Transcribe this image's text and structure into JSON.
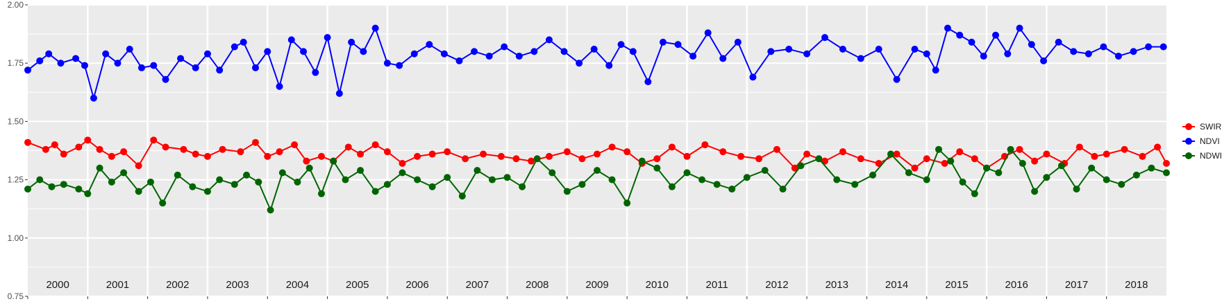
{
  "colors": {
    "panel_bg": "#ebebeb",
    "grid": "#ffffff",
    "swir": "#ff0000",
    "ndvi": "#0000ff",
    "ndwi": "#006400"
  },
  "chart_data": {
    "type": "line",
    "title": "",
    "xlabel": "",
    "ylabel": "",
    "ylim": [
      0.75,
      2.0
    ],
    "xlim": [
      2000.0,
      2019.0
    ],
    "yticks": [
      "0.75",
      "1.00",
      "1.25",
      "1.50",
      "1.75",
      "2.00"
    ],
    "grid": true,
    "legend_position": "right",
    "year_labels": [
      "2000",
      "2001",
      "2002",
      "2003",
      "2004",
      "2005",
      "2006",
      "2007",
      "2008",
      "2009",
      "2010",
      "2011",
      "2012",
      "2013",
      "2014",
      "2015",
      "2016",
      "2017",
      "2018"
    ],
    "series": [
      {
        "name": "SWIR",
        "color": "#ff0000",
        "x": [
          2000.0,
          2000.3,
          2000.45,
          2000.6,
          2000.85,
          2001.0,
          2001.2,
          2001.4,
          2001.6,
          2001.85,
          2002.1,
          2002.3,
          2002.6,
          2002.8,
          2003.0,
          2003.25,
          2003.55,
          2003.8,
          2004.0,
          2004.2,
          2004.45,
          2004.65,
          2004.9,
          2005.1,
          2005.35,
          2005.55,
          2005.8,
          2006.0,
          2006.25,
          2006.5,
          2006.75,
          2007.0,
          2007.3,
          2007.6,
          2007.9,
          2008.15,
          2008.4,
          2008.7,
          2009.0,
          2009.25,
          2009.5,
          2009.75,
          2010.0,
          2010.25,
          2010.5,
          2010.75,
          2011.0,
          2011.3,
          2011.6,
          2011.9,
          2012.2,
          2012.5,
          2012.8,
          2013.0,
          2013.3,
          2013.6,
          2013.9,
          2014.2,
          2014.5,
          2014.8,
          2015.0,
          2015.3,
          2015.55,
          2015.8,
          2016.0,
          2016.3,
          2016.55,
          2016.8,
          2017.0,
          2017.3,
          2017.55,
          2017.8,
          2018.0,
          2018.3,
          2018.6,
          2018.85,
          2019.0
        ],
        "values": [
          1.41,
          1.38,
          1.4,
          1.36,
          1.39,
          1.42,
          1.38,
          1.35,
          1.37,
          1.31,
          1.42,
          1.39,
          1.38,
          1.36,
          1.35,
          1.38,
          1.37,
          1.41,
          1.35,
          1.37,
          1.4,
          1.33,
          1.35,
          1.33,
          1.39,
          1.36,
          1.4,
          1.37,
          1.32,
          1.35,
          1.36,
          1.37,
          1.34,
          1.36,
          1.35,
          1.34,
          1.33,
          1.35,
          1.37,
          1.34,
          1.36,
          1.39,
          1.37,
          1.32,
          1.34,
          1.39,
          1.35,
          1.4,
          1.37,
          1.35,
          1.34,
          1.38,
          1.3,
          1.36,
          1.33,
          1.37,
          1.34,
          1.32,
          1.36,
          1.3,
          1.34,
          1.32,
          1.37,
          1.34,
          1.3,
          1.35,
          1.38,
          1.33,
          1.36,
          1.32,
          1.39,
          1.35,
          1.36,
          1.38,
          1.35,
          1.39,
          1.32
        ]
      },
      {
        "name": "NDVI",
        "color": "#0000ff",
        "x": [
          2000.0,
          2000.2,
          2000.35,
          2000.55,
          2000.8,
          2000.95,
          2001.1,
          2001.3,
          2001.5,
          2001.7,
          2001.9,
          2002.1,
          2002.3,
          2002.55,
          2002.8,
          2003.0,
          2003.2,
          2003.45,
          2003.6,
          2003.8,
          2004.0,
          2004.2,
          2004.4,
          2004.6,
          2004.8,
          2005.0,
          2005.2,
          2005.4,
          2005.6,
          2005.8,
          2006.0,
          2006.2,
          2006.45,
          2006.7,
          2006.95,
          2007.2,
          2007.45,
          2007.7,
          2007.95,
          2008.2,
          2008.45,
          2008.7,
          2008.95,
          2009.2,
          2009.45,
          2009.7,
          2009.9,
          2010.1,
          2010.35,
          2010.6,
          2010.85,
          2011.1,
          2011.35,
          2011.6,
          2011.85,
          2012.1,
          2012.4,
          2012.7,
          2013.0,
          2013.3,
          2013.6,
          2013.9,
          2014.2,
          2014.5,
          2014.8,
          2015.0,
          2015.15,
          2015.35,
          2015.55,
          2015.75,
          2015.95,
          2016.15,
          2016.35,
          2016.55,
          2016.75,
          2016.95,
          2017.2,
          2017.45,
          2017.7,
          2017.95,
          2018.2,
          2018.45,
          2018.7,
          2018.95
        ],
        "values": [
          1.72,
          1.76,
          1.79,
          1.75,
          1.77,
          1.74,
          1.6,
          1.79,
          1.75,
          1.81,
          1.73,
          1.74,
          1.68,
          1.77,
          1.73,
          1.79,
          1.72,
          1.82,
          1.84,
          1.73,
          1.8,
          1.65,
          1.85,
          1.8,
          1.71,
          1.86,
          1.62,
          1.84,
          1.8,
          1.9,
          1.75,
          1.74,
          1.79,
          1.83,
          1.79,
          1.76,
          1.8,
          1.78,
          1.82,
          1.78,
          1.8,
          1.85,
          1.8,
          1.75,
          1.81,
          1.74,
          1.83,
          1.8,
          1.67,
          1.84,
          1.83,
          1.78,
          1.88,
          1.77,
          1.84,
          1.69,
          1.8,
          1.81,
          1.79,
          1.86,
          1.81,
          1.77,
          1.81,
          1.68,
          1.81,
          1.79,
          1.72,
          1.9,
          1.87,
          1.84,
          1.78,
          1.87,
          1.79,
          1.9,
          1.83,
          1.76,
          1.84,
          1.8,
          1.79,
          1.82,
          1.78,
          1.8,
          1.82,
          1.82
        ]
      },
      {
        "name": "NDWI",
        "color": "#006400",
        "x": [
          2000.0,
          2000.2,
          2000.4,
          2000.6,
          2000.85,
          2001.0,
          2001.2,
          2001.4,
          2001.6,
          2001.85,
          2002.05,
          2002.25,
          2002.5,
          2002.75,
          2003.0,
          2003.2,
          2003.45,
          2003.65,
          2003.85,
          2004.05,
          2004.25,
          2004.5,
          2004.7,
          2004.9,
          2005.1,
          2005.3,
          2005.55,
          2005.8,
          2006.0,
          2006.25,
          2006.5,
          2006.75,
          2007.0,
          2007.25,
          2007.5,
          2007.75,
          2008.0,
          2008.25,
          2008.5,
          2008.75,
          2009.0,
          2009.25,
          2009.5,
          2009.75,
          2010.0,
          2010.25,
          2010.5,
          2010.75,
          2011.0,
          2011.25,
          2011.5,
          2011.75,
          2012.0,
          2012.3,
          2012.6,
          2012.9,
          2013.2,
          2013.5,
          2013.8,
          2014.1,
          2014.4,
          2014.7,
          2015.0,
          2015.2,
          2015.4,
          2015.6,
          2015.8,
          2016.0,
          2016.2,
          2016.4,
          2016.6,
          2016.8,
          2017.0,
          2017.25,
          2017.5,
          2017.75,
          2018.0,
          2018.25,
          2018.5,
          2018.75,
          2019.0
        ],
        "values": [
          1.21,
          1.25,
          1.22,
          1.23,
          1.21,
          1.19,
          1.3,
          1.24,
          1.28,
          1.2,
          1.24,
          1.15,
          1.27,
          1.22,
          1.2,
          1.25,
          1.23,
          1.27,
          1.24,
          1.12,
          1.28,
          1.24,
          1.3,
          1.19,
          1.33,
          1.25,
          1.29,
          1.2,
          1.23,
          1.28,
          1.25,
          1.22,
          1.26,
          1.18,
          1.29,
          1.25,
          1.26,
          1.22,
          1.34,
          1.28,
          1.2,
          1.23,
          1.29,
          1.25,
          1.15,
          1.33,
          1.3,
          1.22,
          1.28,
          1.25,
          1.23,
          1.21,
          1.26,
          1.29,
          1.21,
          1.31,
          1.34,
          1.25,
          1.23,
          1.27,
          1.36,
          1.28,
          1.25,
          1.38,
          1.33,
          1.24,
          1.19,
          1.3,
          1.28,
          1.38,
          1.32,
          1.2,
          1.26,
          1.31,
          1.21,
          1.3,
          1.25,
          1.23,
          1.27,
          1.3,
          1.28
        ]
      }
    ]
  }
}
